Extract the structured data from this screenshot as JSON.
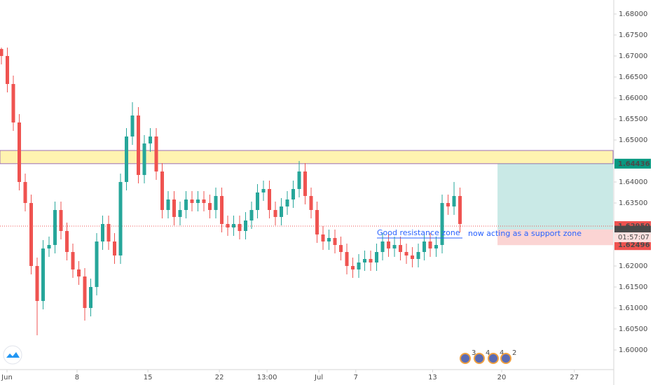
{
  "chart_data": {
    "type": "candlestick",
    "ylim": [
      1.59533,
      1.68333
    ],
    "xlim": [
      -0.235,
      102.7
    ],
    "yticks": [
      {
        "value": 1.68,
        "label": "1.68000"
      },
      {
        "value": 1.675,
        "label": "1.67500"
      },
      {
        "value": 1.67,
        "label": "1.67000"
      },
      {
        "value": 1.665,
        "label": "1.66500"
      },
      {
        "value": 1.66,
        "label": "1.66000"
      },
      {
        "value": 1.655,
        "label": "1.65500"
      },
      {
        "value": 1.65,
        "label": "1.65000"
      },
      {
        "value": 1.64,
        "label": "1.64000"
      },
      {
        "value": 1.635,
        "label": "1.63500"
      },
      {
        "value": 1.62,
        "label": "1.62000"
      },
      {
        "value": 1.615,
        "label": "1.61500"
      },
      {
        "value": 1.61,
        "label": "1.61000"
      },
      {
        "value": 1.605,
        "label": "1.60500"
      },
      {
        "value": 1.6,
        "label": "1.60000"
      }
    ],
    "xticks": [
      {
        "value": 0.94,
        "label": "Jun"
      },
      {
        "value": 12.7,
        "label": "8"
      },
      {
        "value": 24.6,
        "label": "15"
      },
      {
        "value": 36.6,
        "label": "22"
      },
      {
        "value": 44.6,
        "label": "13:00"
      },
      {
        "value": 53.3,
        "label": "Jul"
      },
      {
        "value": 59.5,
        "label": "7"
      },
      {
        "value": 72.4,
        "label": "13"
      },
      {
        "value": 84,
        "label": "20"
      },
      {
        "value": 96.2,
        "label": "27"
      }
    ],
    "up_color": "#26a69a",
    "down_color": "#ef5350",
    "open": [
      1.67167,
      1.67,
      1.66333,
      1.65417,
      1.64,
      1.635,
      1.62,
      1.61167,
      1.62417,
      1.625,
      1.63333,
      1.62833,
      1.62333,
      1.61917,
      1.6175,
      1.61,
      1.615,
      1.62583,
      1.63,
      1.62583,
      1.6225,
      1.64,
      1.65083,
      1.65583,
      1.64167,
      1.64917,
      1.65083,
      1.6425,
      1.63333,
      1.63583,
      1.63167,
      1.63333,
      1.63583,
      1.635,
      1.63583,
      1.635,
      1.63333,
      1.63667,
      1.63,
      1.62917,
      1.63,
      1.62833,
      1.63083,
      1.63333,
      1.6375,
      1.63833,
      1.63333,
      1.63167,
      1.63417,
      1.63583,
      1.63833,
      1.6425,
      1.63667,
      1.63333,
      1.6275,
      1.62583,
      1.62667,
      1.625,
      1.62333,
      1.62,
      1.61917,
      1.62083,
      1.62167,
      1.62083,
      1.62333,
      1.62583,
      1.62417,
      1.625,
      1.62333,
      1.6225,
      1.62167,
      1.62333,
      1.62583,
      1.62417,
      1.625,
      1.635,
      1.63417,
      1.63667
    ],
    "high": [
      1.672,
      1.672,
      1.66533,
      1.65617,
      1.642,
      1.637,
      1.622,
      1.62617,
      1.627,
      1.63533,
      1.63533,
      1.63033,
      1.62533,
      1.62117,
      1.6195,
      1.617,
      1.62783,
      1.632,
      1.632,
      1.62783,
      1.642,
      1.65283,
      1.659,
      1.65783,
      1.65117,
      1.65283,
      1.65283,
      1.6445,
      1.63783,
      1.63783,
      1.63533,
      1.63783,
      1.63783,
      1.63783,
      1.63783,
      1.637,
      1.63867,
      1.63867,
      1.632,
      1.632,
      1.632,
      1.63283,
      1.63533,
      1.6395,
      1.64033,
      1.64033,
      1.63533,
      1.63617,
      1.63783,
      1.64033,
      1.645,
      1.6445,
      1.63867,
      1.63533,
      1.6295,
      1.62867,
      1.62867,
      1.627,
      1.62533,
      1.622,
      1.62283,
      1.62367,
      1.62367,
      1.62533,
      1.62783,
      1.62783,
      1.627,
      1.627,
      1.62533,
      1.6245,
      1.62533,
      1.62783,
      1.62783,
      1.627,
      1.637,
      1.637,
      1.64,
      1.63867
    ],
    "low": [
      1.668,
      1.66133,
      1.65217,
      1.638,
      1.633,
      1.618,
      1.6035,
      1.60967,
      1.62217,
      1.623,
      1.62633,
      1.62133,
      1.61717,
      1.6155,
      1.607,
      1.608,
      1.613,
      1.62383,
      1.62383,
      1.6205,
      1.6205,
      1.638,
      1.64883,
      1.63967,
      1.63967,
      1.64717,
      1.6405,
      1.63133,
      1.63133,
      1.62967,
      1.62967,
      1.63133,
      1.633,
      1.633,
      1.633,
      1.63133,
      1.63133,
      1.628,
      1.62717,
      1.62717,
      1.62633,
      1.62633,
      1.62883,
      1.63133,
      1.6355,
      1.63133,
      1.62967,
      1.62967,
      1.63217,
      1.63383,
      1.63633,
      1.63467,
      1.63133,
      1.6255,
      1.62383,
      1.62383,
      1.623,
      1.62133,
      1.618,
      1.61717,
      1.61717,
      1.61883,
      1.61883,
      1.61883,
      1.62133,
      1.62217,
      1.62217,
      1.62133,
      1.6205,
      1.61967,
      1.61967,
      1.62133,
      1.62217,
      1.62217,
      1.623,
      1.63217,
      1.63217,
      1.628
    ],
    "close": [
      1.67,
      1.66333,
      1.65417,
      1.64,
      1.635,
      1.62,
      1.61167,
      1.62417,
      1.625,
      1.63333,
      1.62833,
      1.62333,
      1.61917,
      1.6175,
      1.61,
      1.615,
      1.62583,
      1.63,
      1.62583,
      1.6225,
      1.64,
      1.65083,
      1.65583,
      1.64167,
      1.64917,
      1.65083,
      1.6425,
      1.63333,
      1.63583,
      1.63167,
      1.63333,
      1.63583,
      1.635,
      1.63583,
      1.635,
      1.63333,
      1.63667,
      1.63,
      1.62917,
      1.63,
      1.62833,
      1.63083,
      1.63333,
      1.6375,
      1.63833,
      1.63333,
      1.63167,
      1.63417,
      1.63583,
      1.63833,
      1.6425,
      1.63667,
      1.63333,
      1.6275,
      1.62583,
      1.62667,
      1.625,
      1.62333,
      1.62,
      1.61917,
      1.62083,
      1.62167,
      1.62083,
      1.62333,
      1.62583,
      1.62417,
      1.625,
      1.62333,
      1.6225,
      1.62167,
      1.62333,
      1.62583,
      1.62417,
      1.625,
      1.635,
      1.63417,
      1.63667,
      1.63
    ],
    "zone": {
      "low": 1.64436,
      "high": 1.6475,
      "color": "#fff3b0",
      "edge": "#9c6fb6"
    },
    "position": {
      "target": 1.64436,
      "entry": 1.6287,
      "stop": 1.62496,
      "start": 83.3
    },
    "dotted_line": 1.6295,
    "markers": [
      {
        "value": 1.64436,
        "color": "#089981"
      },
      {
        "value": 1.6295,
        "label": "1.62950",
        "color": "#ef5350"
      },
      {
        "value": 1.62841,
        "color": "#4a4a4a"
      },
      {
        "value": 1.62496,
        "color": "#ef5350"
      }
    ],
    "countdown": "01:57:07",
    "annotations": [
      "Good resistance zone",
      "now acting as a support zone"
    ],
    "badges": [
      "3",
      "4",
      "4",
      "2"
    ]
  }
}
